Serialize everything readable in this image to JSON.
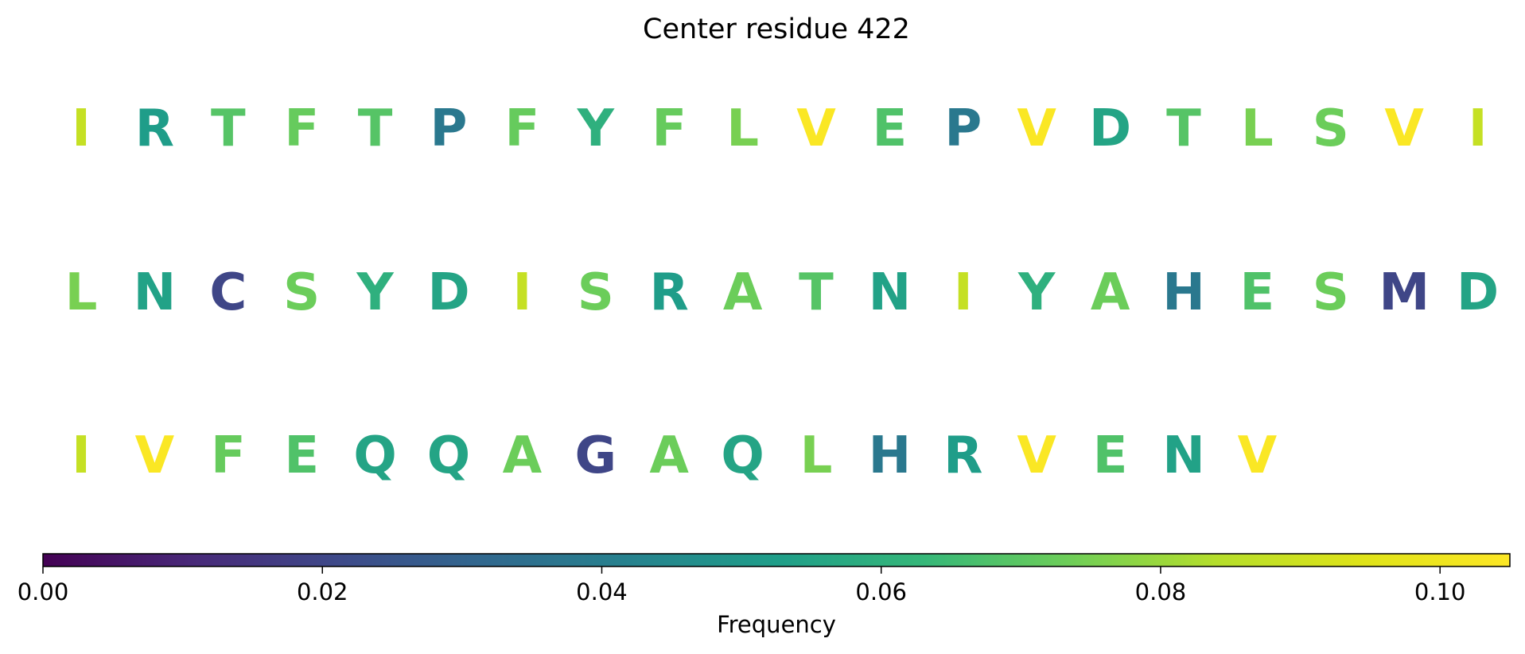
{
  "chart_data": {
    "type": "heatmap",
    "title": "Center residue 422",
    "rows": [
      {
        "residues": [
          "I",
          "R",
          "T",
          "F",
          "T",
          "P",
          "F",
          "Y",
          "F",
          "L",
          "V",
          "E",
          "P",
          "V",
          "D",
          "T",
          "L",
          "S",
          "V",
          "I"
        ],
        "values": [
          0.088,
          0.052,
          0.069,
          0.072,
          0.069,
          0.038,
          0.072,
          0.06,
          0.072,
          0.075,
          0.104,
          0.068,
          0.038,
          0.104,
          0.055,
          0.069,
          0.075,
          0.073,
          0.104,
          0.088
        ]
      },
      {
        "residues": [
          "L",
          "N",
          "C",
          "S",
          "Y",
          "D",
          "I",
          "S",
          "R",
          "A",
          "T",
          "N",
          "I",
          "Y",
          "A",
          "H",
          "E",
          "S",
          "M",
          "D"
        ],
        "values": [
          0.075,
          0.054,
          0.02,
          0.073,
          0.06,
          0.055,
          0.088,
          0.073,
          0.052,
          0.073,
          0.069,
          0.054,
          0.088,
          0.06,
          0.073,
          0.038,
          0.068,
          0.073,
          0.02,
          0.055
        ]
      },
      {
        "residues": [
          "I",
          "V",
          "F",
          "E",
          "Q",
          "Q",
          "A",
          "G",
          "A",
          "Q",
          "L",
          "H",
          "R",
          "V",
          "E",
          "N",
          "V"
        ],
        "values": [
          0.088,
          0.104,
          0.072,
          0.068,
          0.055,
          0.055,
          0.073,
          0.02,
          0.073,
          0.055,
          0.075,
          0.038,
          0.052,
          0.104,
          0.068,
          0.054,
          0.104
        ]
      }
    ],
    "colormap": "viridis",
    "colorbar": {
      "label": "Frequency",
      "range": [
        0.0,
        0.105
      ],
      "ticks": [
        0.0,
        0.02,
        0.04,
        0.06,
        0.08,
        0.1
      ],
      "tick_labels": [
        "0.00",
        "0.02",
        "0.04",
        "0.06",
        "0.08",
        "0.10"
      ]
    }
  }
}
